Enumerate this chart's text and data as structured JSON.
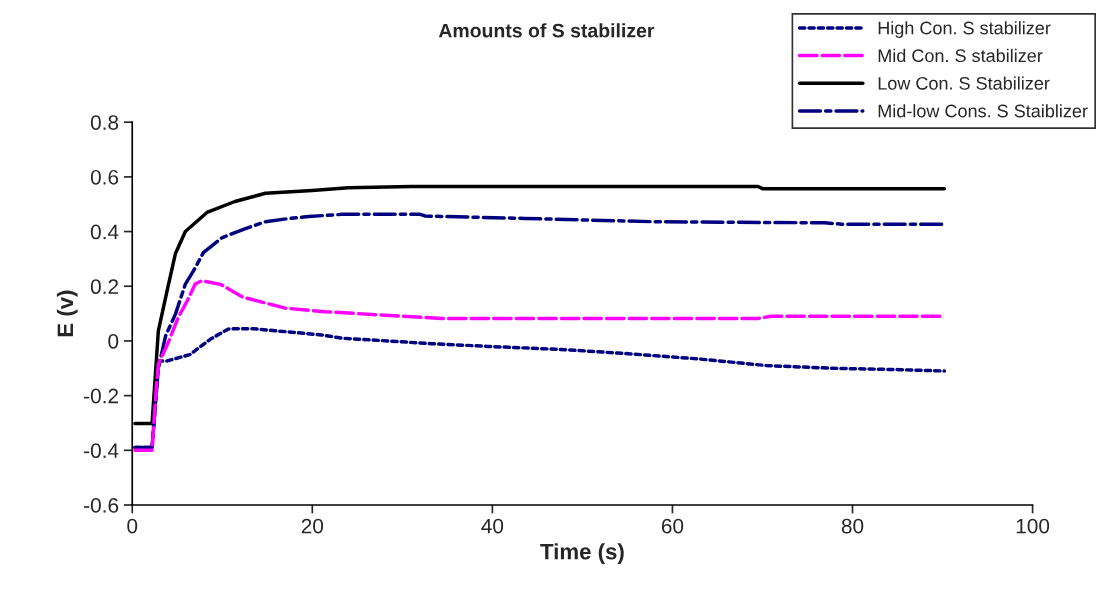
{
  "chart_data": {
    "type": "line",
    "title": "Amounts of S stabilizer",
    "xlabel": "Time (s)",
    "ylabel": "E (v)",
    "xlim": [
      0,
      100
    ],
    "xticks": [
      0,
      20,
      40,
      60,
      80,
      100
    ],
    "ylim": [
      -0.6,
      0.8
    ],
    "yticks": [
      -0.6,
      -0.4,
      -0.2,
      0,
      0.2,
      0.4,
      0.6,
      0.8
    ],
    "grid": false,
    "legend": "top right",
    "marker": "none",
    "series": [
      {
        "name": "High Con. S stabilizer",
        "color": "#000080",
        "line_style": "dotted",
        "x": [
          0.3,
          2.2,
          2.9,
          3.9,
          6.4,
          8.7,
          10.7,
          13.4,
          15.9,
          18.4,
          21,
          23.3,
          28.4,
          33.2,
          39.5,
          48.2,
          55.6,
          63,
          70.4,
          77.8,
          85.2,
          90.2
        ],
        "values": [
          -0.39,
          -0.39,
          -0.073,
          -0.073,
          -0.05,
          0.007,
          0.044,
          0.045,
          0.037,
          0.03,
          0.022,
          0.01,
          0.0,
          -0.01,
          -0.02,
          -0.032,
          -0.048,
          -0.066,
          -0.09,
          -0.1,
          -0.105,
          -0.11
        ]
      },
      {
        "name": "Mid Con. S stabilizer",
        "color": "#ff00ff",
        "line_style": "dashed",
        "x": [
          0.3,
          2.2,
          2.7,
          2.9,
          4.0,
          5.1,
          6.1,
          7.0,
          7.7,
          9.8,
          12.3,
          17,
          21.4,
          34.4,
          69.5,
          70.9,
          90.2
        ],
        "values": [
          -0.4,
          -0.4,
          -0.16,
          -0.085,
          -0.006,
          0.085,
          0.146,
          0.208,
          0.22,
          0.207,
          0.16,
          0.12,
          0.107,
          0.082,
          0.082,
          0.09,
          0.09
        ]
      },
      {
        "name": "Low Con. S Stabilizer",
        "color": "#000000",
        "line_style": "solid",
        "x": [
          0.3,
          2.2,
          2.9,
          3.85,
          4.8,
          5.9,
          8.3,
          11.4,
          14.8,
          20,
          24,
          31,
          69.5,
          70,
          90.2
        ],
        "values": [
          -0.302,
          -0.302,
          0.037,
          0.18,
          0.32,
          0.4,
          0.47,
          0.51,
          0.54,
          0.55,
          0.56,
          0.565,
          0.565,
          0.557,
          0.557
        ]
      },
      {
        "name": "Mid-low Cons. S Staiblizer",
        "color": "#000080",
        "line_style": "dashdot",
        "x": [
          0.3,
          2.2,
          2.9,
          3.7,
          4.8,
          5.9,
          6.8,
          7.9,
          10,
          12.5,
          14.8,
          17.2,
          19.6,
          23.3,
          32,
          32.5,
          43.6,
          58,
          76.9,
          78.8,
          90.2
        ],
        "values": [
          -0.39,
          -0.39,
          -0.1,
          0.018,
          0.098,
          0.208,
          0.256,
          0.323,
          0.378,
          0.41,
          0.436,
          0.447,
          0.455,
          0.463,
          0.463,
          0.457,
          0.448,
          0.436,
          0.432,
          0.427,
          0.427
        ]
      }
    ]
  }
}
